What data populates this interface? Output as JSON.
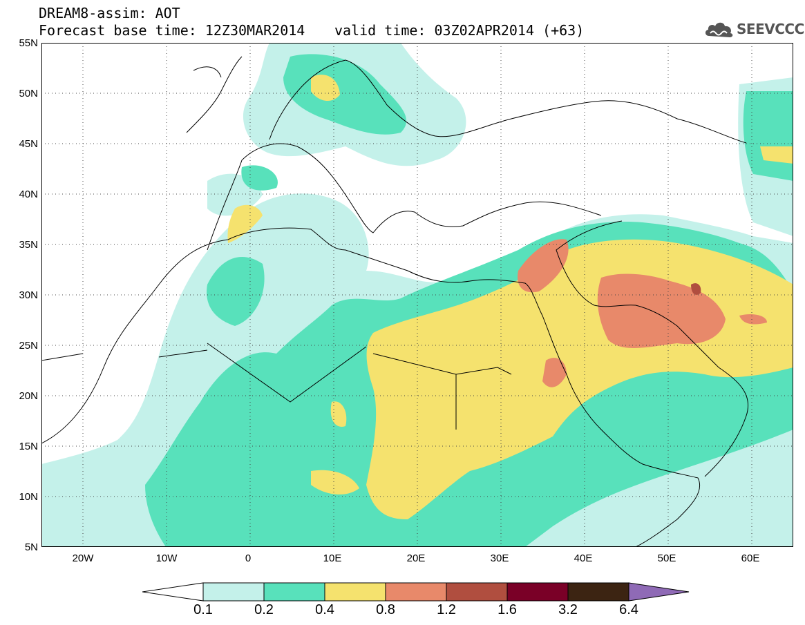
{
  "header": {
    "title_line1": "DREAM8-assim: AOT",
    "base_time": "Forecast base time: 12Z30MAR2014",
    "valid_time": "valid time: 03Z02APR2014 (+63)",
    "logo_text": "SEEVCCC",
    "logo_icon": "cloud-icon"
  },
  "map": {
    "lat_labels": [
      "55N",
      "50N",
      "45N",
      "40N",
      "35N",
      "30N",
      "25N",
      "20N",
      "15N",
      "10N",
      "5N"
    ],
    "lon_labels": [
      "20W",
      "10W",
      "0",
      "10E",
      "20E",
      "30E",
      "40E",
      "50E",
      "60E"
    ]
  },
  "colorbar": {
    "levels": [
      "0.1",
      "0.2",
      "0.4",
      "0.8",
      "1.2",
      "1.6",
      "3.2",
      "6.4"
    ],
    "colors": [
      "#ffffff",
      "#c4f1ea",
      "#58e1bb",
      "#f5e26e",
      "#e8896a",
      "#b04e3f",
      "#7a0027",
      "#3c2412",
      "#8f6ab6"
    ]
  }
}
